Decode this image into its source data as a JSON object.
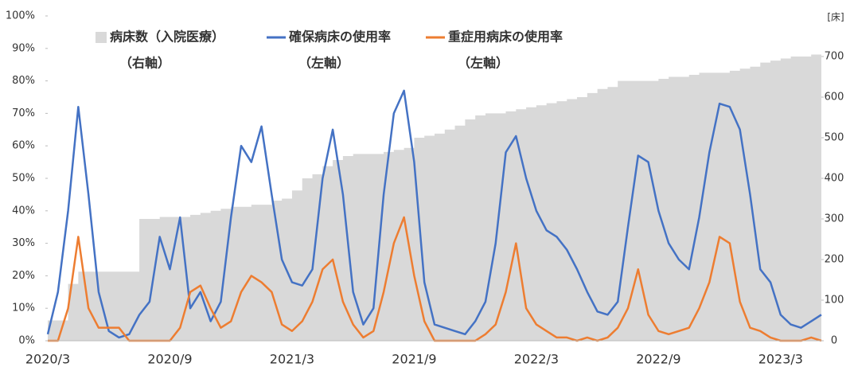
{
  "chart_data": {
    "type": "line",
    "categories": [
      "2020/3",
      null,
      null,
      null,
      null,
      null,
      null,
      null,
      null,
      null,
      null,
      null,
      "2020/9",
      null,
      null,
      null,
      null,
      null,
      null,
      null,
      null,
      null,
      null,
      null,
      "2021/3",
      null,
      null,
      null,
      null,
      null,
      null,
      null,
      null,
      null,
      null,
      null,
      "2021/9",
      null,
      null,
      null,
      null,
      null,
      null,
      null,
      null,
      null,
      null,
      null,
      "2022/3",
      null,
      null,
      null,
      null,
      null,
      null,
      null,
      null,
      null,
      null,
      null,
      "2022/9",
      null,
      null,
      null,
      null,
      null,
      null,
      null,
      null,
      null,
      null,
      null,
      "2023/3",
      null,
      null,
      null,
      null
    ],
    "series": [
      {
        "name": "病床数（入院医療）",
        "axis_note": "（右軸）",
        "color": "#d9d9d9",
        "axis": "y2",
        "style": "area",
        "values": [
          50,
          50,
          140,
          170,
          170,
          170,
          170,
          170,
          170,
          300,
          300,
          305,
          305,
          305,
          310,
          315,
          320,
          325,
          330,
          330,
          335,
          335,
          345,
          350,
          370,
          400,
          410,
          430,
          445,
          455,
          460,
          460,
          460,
          465,
          470,
          475,
          500,
          505,
          510,
          520,
          530,
          545,
          555,
          560,
          560,
          565,
          570,
          575,
          580,
          585,
          590,
          595,
          600,
          610,
          620,
          625,
          640,
          640,
          640,
          640,
          645,
          650,
          650,
          655,
          660,
          660,
          660,
          665,
          670,
          675,
          685,
          690,
          695,
          700,
          700,
          705,
          715
        ]
      },
      {
        "name": "確保病床の使用率",
        "axis_note": "（左軸）",
        "color": "#4472c4",
        "values": [
          2,
          15,
          40,
          72,
          45,
          15,
          3,
          1,
          2,
          8,
          12,
          32,
          22,
          38,
          10,
          15,
          6,
          12,
          38,
          60,
          55,
          66,
          45,
          25,
          18,
          17,
          22,
          50,
          65,
          45,
          15,
          5,
          10,
          45,
          70,
          77,
          55,
          18,
          5,
          4,
          3,
          2,
          6,
          12,
          30,
          58,
          63,
          50,
          40,
          34,
          32,
          28,
          22,
          15,
          9,
          8,
          12,
          35,
          57,
          55,
          40,
          30,
          25,
          22,
          38,
          58,
          73,
          72,
          65,
          45,
          22,
          18,
          8,
          5,
          4,
          6,
          8
        ]
      },
      {
        "name": "重症用病床の使用率",
        "axis_note": "（左軸）",
        "color": "#ed7d31",
        "values": [
          0,
          0,
          10,
          32,
          10,
          4,
          4,
          4,
          0,
          0,
          0,
          0,
          0,
          4,
          15,
          17,
          10,
          4,
          6,
          15,
          20,
          18,
          15,
          5,
          3,
          6,
          12,
          22,
          25,
          12,
          5,
          1,
          3,
          15,
          30,
          38,
          20,
          6,
          0,
          0,
          0,
          0,
          0,
          2,
          5,
          15,
          30,
          10,
          5,
          3,
          1,
          1,
          0,
          1,
          0,
          1,
          4,
          10,
          22,
          8,
          3,
          2,
          3,
          4,
          10,
          18,
          32,
          30,
          12,
          4,
          3,
          1,
          0,
          0,
          0,
          1,
          0
        ]
      }
    ],
    "ylim": [
      0,
      100
    ],
    "yticks": [
      {
        "value": 0,
        "label": "0%"
      },
      {
        "value": 10,
        "label": "10%"
      },
      {
        "value": 20,
        "label": "20%"
      },
      {
        "value": 30,
        "label": "30%"
      },
      {
        "value": 40,
        "label": "40%"
      },
      {
        "value": 50,
        "label": "50%"
      },
      {
        "value": 60,
        "label": "60%"
      },
      {
        "value": 70,
        "label": "70%"
      },
      {
        "value": 80,
        "label": "80%"
      },
      {
        "value": 90,
        "label": "90%"
      },
      {
        "value": 100,
        "label": "100%"
      }
    ],
    "y2lim": [
      0,
      800
    ],
    "y2ticks": [
      0,
      100,
      200,
      300,
      400,
      500,
      600,
      700
    ],
    "y2label": "[床]"
  }
}
